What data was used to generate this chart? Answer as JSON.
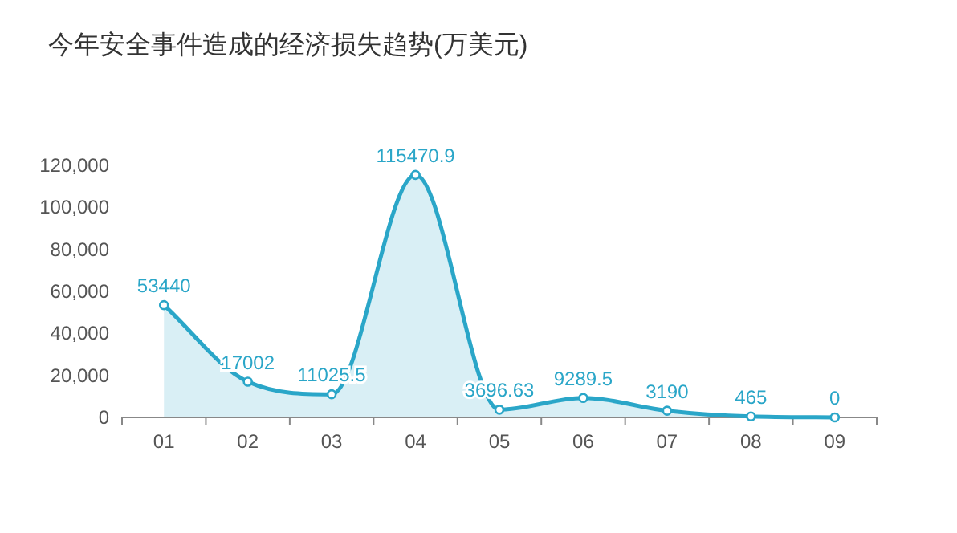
{
  "chart_data": {
    "type": "area",
    "title": "今年安全事件造成的经济损失趋势(万美元)",
    "categories": [
      "01",
      "02",
      "03",
      "04",
      "05",
      "06",
      "07",
      "08",
      "09"
    ],
    "series": [
      {
        "color": "#2aa6c8",
        "values": [
          53440,
          17002,
          11025.5,
          115470.9,
          3696.63,
          9289.5,
          3190,
          465,
          0
        ]
      }
    ],
    "ylim": [
      0,
      120000
    ],
    "yticks": [
      {
        "value": 0,
        "label": "0"
      },
      {
        "value": 20000,
        "label": "20,000"
      },
      {
        "value": 40000,
        "label": "40,000"
      },
      {
        "value": 60000,
        "label": "60,000"
      },
      {
        "value": 80000,
        "label": "80,000"
      },
      {
        "value": 100000,
        "label": "100,000"
      },
      {
        "value": 120000,
        "label": "120,000"
      }
    ],
    "data_labels": true,
    "marker": "circle",
    "grid": false
  }
}
